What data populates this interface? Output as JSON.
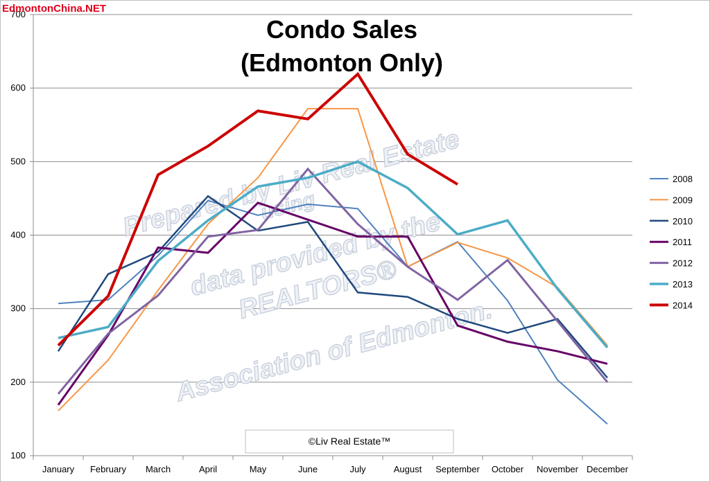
{
  "brand": "EdmontonChina.NET",
  "watermark": {
    "lines": [
      "Prepared by Liv Real Estate",
      "using",
      "data provided by the",
      "REALTORS®",
      "Association of Edmonton."
    ]
  },
  "copyright": "©Liv Real Estate™",
  "chart_data": {
    "type": "line",
    "title": [
      "Condo Sales",
      "(Edmonton Only)"
    ],
    "xlabel": "",
    "ylabel": "",
    "ylim": [
      100,
      700
    ],
    "yticks": [
      100,
      200,
      300,
      400,
      500,
      600,
      700
    ],
    "grid": true,
    "legend": "right",
    "categories": [
      "January",
      "February",
      "March",
      "April",
      "May",
      "June",
      "July",
      "August",
      "September",
      "October",
      "November",
      "December"
    ],
    "series": [
      {
        "name": "2008",
        "color": "#4f81bd",
        "width": 2,
        "values": [
          307,
          312,
          372,
          447,
          427,
          442,
          436,
          357,
          391,
          311,
          203,
          143
        ]
      },
      {
        "name": "2009",
        "color": "#f79646",
        "width": 2,
        "values": [
          161,
          230,
          325,
          415,
          478,
          572,
          572,
          357,
          390,
          369,
          329,
          250
        ]
      },
      {
        "name": "2010",
        "color": "#1f497d",
        "width": 2.5,
        "values": [
          242,
          347,
          377,
          453,
          406,
          418,
          322,
          316,
          286,
          267,
          286,
          206
        ]
      },
      {
        "name": "2011",
        "color": "#660066",
        "width": 3,
        "values": [
          169,
          264,
          383,
          376,
          444,
          421,
          398,
          398,
          277,
          255,
          242,
          225
        ]
      },
      {
        "name": "2012",
        "color": "#8064a2",
        "width": 3,
        "values": [
          184,
          266,
          318,
          398,
          407,
          490,
          415,
          357,
          312,
          366,
          283,
          200
        ]
      },
      {
        "name": "2013",
        "color": "#4bacc6",
        "width": 3.5,
        "values": [
          260,
          275,
          365,
          420,
          466,
          478,
          500,
          464,
          401,
          420,
          327,
          247
        ]
      },
      {
        "name": "2014",
        "color": "#cc0000",
        "width": 4,
        "values": [
          250,
          317,
          482,
          521,
          569,
          558,
          619,
          510,
          469,
          null,
          null,
          null
        ]
      }
    ]
  }
}
